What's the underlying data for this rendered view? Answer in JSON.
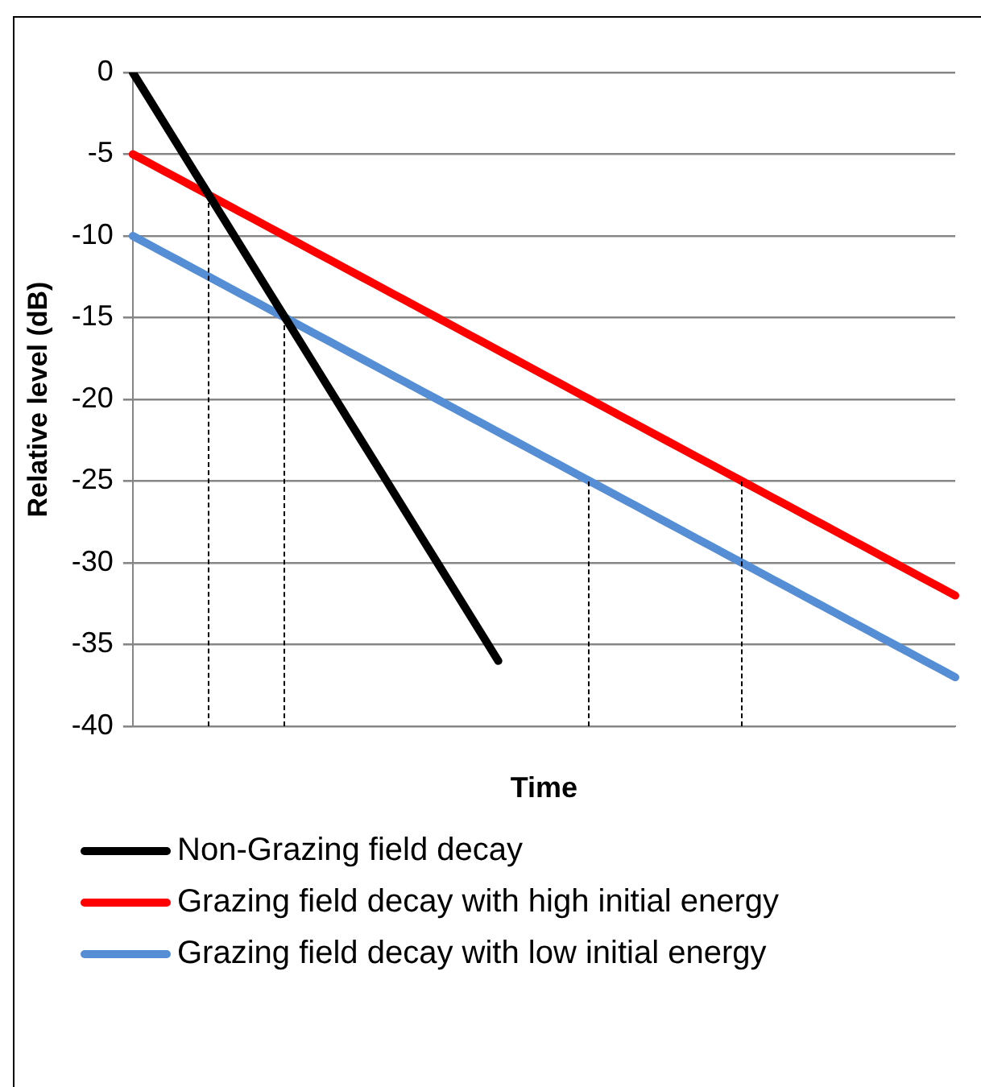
{
  "chart_data": {
    "type": "line",
    "xlabel": "Time",
    "ylabel": "Relative level (dB)",
    "categories": [
      null,
      null,
      null,
      null,
      null,
      null,
      null,
      null,
      null,
      null,
      null,
      null,
      null,
      null,
      null,
      null,
      null,
      null,
      null,
      null,
      null,
      null,
      null,
      null,
      null,
      null,
      null,
      null,
      null,
      null,
      null,
      null,
      null,
      null,
      null,
      null,
      null,
      null,
      null,
      null,
      null,
      null,
      null,
      null,
      null,
      null,
      null,
      null,
      null,
      null,
      null,
      null,
      null,
      null,
      null
    ],
    "ylim": [
      -40,
      0
    ],
    "yticks": [
      0,
      -5,
      -10,
      -15,
      -20,
      -25,
      -30,
      -35,
      -40
    ],
    "grid": "y",
    "legend": "bottom",
    "marker": "none",
    "series": [
      {
        "name": "Non-Grazing field decay",
        "color": "#000000",
        "values": [
          0,
          -1.5,
          -3,
          -4.5,
          -6,
          -7.5,
          -9,
          -10.5,
          -12,
          -13.5,
          -15,
          -16.5,
          -18,
          -19.5,
          -21,
          -22.5,
          -24,
          -25.5,
          -27,
          -28.5,
          -30,
          -31.5,
          -33,
          -34.5,
          -36,
          null,
          null,
          null,
          null,
          null,
          null,
          null,
          null,
          null,
          null,
          null,
          null,
          null,
          null,
          null,
          null,
          null,
          null,
          null,
          null,
          null,
          null,
          null,
          null,
          null,
          null,
          null,
          null,
          null,
          null
        ]
      },
      {
        "name": "Grazing field decay with high initial energy",
        "color": "#ff0000",
        "values": [
          -5,
          -5.5,
          -6,
          -6.5,
          -7,
          -7.5,
          -8,
          -8.5,
          -9,
          -9.5,
          -10,
          -10.5,
          -11,
          -11.5,
          -12,
          -12.5,
          -13,
          -13.5,
          -14,
          -14.5,
          -15,
          -15.5,
          -16,
          -16.5,
          -17,
          -17.5,
          -18,
          -18.5,
          -19,
          -19.5,
          -20,
          -20.5,
          -21,
          -21.5,
          -22,
          -22.5,
          -23,
          -23.5,
          -24,
          -24.5,
          -25,
          -25.5,
          -26,
          -26.5,
          -27,
          -27.5,
          -28,
          -28.5,
          -29,
          -29.5,
          -30,
          -30.5,
          -31,
          -31.5,
          -32
        ]
      },
      {
        "name": "Grazing field decay with low initial energy",
        "color": "#558ed5",
        "values": [
          -10,
          -10.5,
          -11,
          -11.5,
          -12,
          -12.5,
          -13,
          -13.5,
          -14,
          -14.5,
          -15,
          -15.5,
          -16,
          -16.5,
          -17,
          -17.5,
          -18,
          -18.5,
          -19,
          -19.5,
          -20,
          -20.5,
          -21,
          -21.5,
          -22,
          -22.5,
          -23,
          -23.5,
          -24,
          -24.5,
          -25,
          -25.5,
          -26,
          -26.5,
          -27,
          -27.5,
          -28,
          -28.5,
          -29,
          -29.5,
          -30,
          -30.5,
          -31,
          -31.5,
          -32,
          -32.5,
          -33,
          -33.5,
          -34,
          -34.5,
          -35,
          -35.5,
          -36,
          -36.5,
          -37
        ]
      }
    ]
  }
}
